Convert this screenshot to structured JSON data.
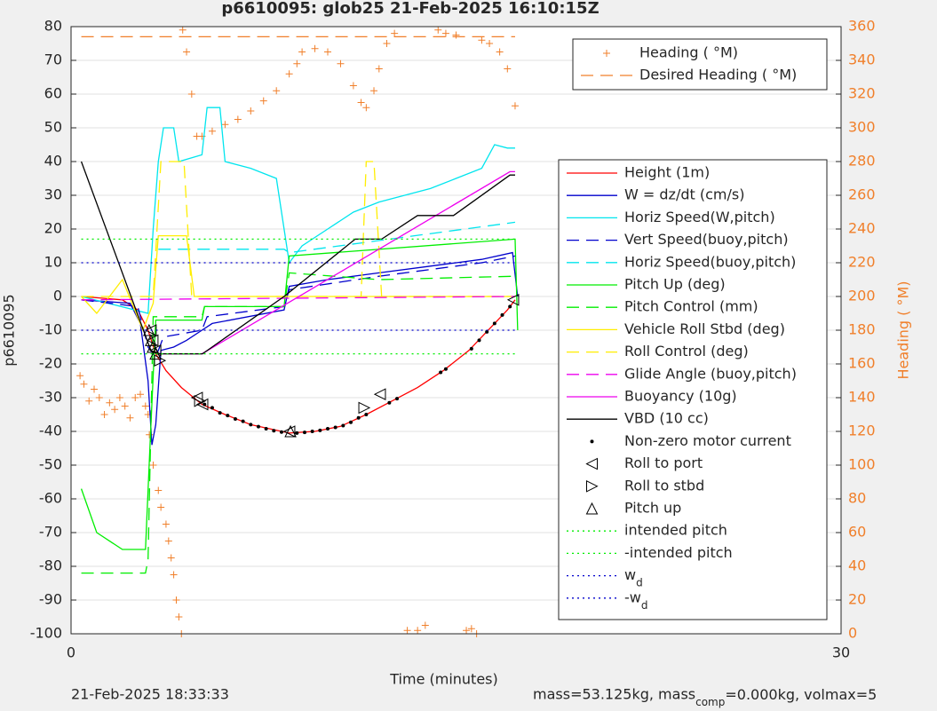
{
  "chart_data": {
    "type": "line",
    "title": "p6610095: glob25 21-Feb-2025 16:10:15Z",
    "x_label": "Time (minutes)",
    "y_label": "p6610095",
    "y2_label": "Heading (  °M)",
    "footer_left": "21-Feb-2025 18:33:33",
    "footer_right": "mass=53.125kg, mass_comp=0.000kg, volmax=5",
    "xlim": [
      0,
      30
    ],
    "xticks": [
      0,
      30
    ],
    "ylim": [
      -100,
      80
    ],
    "yticks": [
      -100,
      -90,
      -80,
      -70,
      -60,
      -50,
      -40,
      -30,
      -20,
      -10,
      0,
      10,
      20,
      30,
      40,
      50,
      60,
      70,
      80
    ],
    "y2lim": [
      0,
      360
    ],
    "y2ticks": [
      0,
      20,
      40,
      60,
      80,
      100,
      120,
      140,
      160,
      180,
      200,
      220,
      240,
      260,
      280,
      300,
      320,
      340,
      360
    ],
    "grid": true,
    "series": [
      {
        "name": "Heading (  °M)",
        "axis": "y2",
        "color": "#f07f2a",
        "line_style": "none",
        "marker": "+",
        "x": [
          0.35,
          0.5,
          0.7,
          0.9,
          1.1,
          1.3,
          1.5,
          1.7,
          1.9,
          2.1,
          2.3,
          2.5,
          2.7,
          2.9,
          3.0,
          3.05,
          3.2,
          3.4,
          3.5,
          3.7,
          3.8,
          3.9,
          4.0,
          4.1,
          4.2,
          4.3,
          4.35,
          4.5,
          4.7,
          4.9,
          5.1,
          5.5,
          6,
          6.5,
          7,
          7.5,
          8,
          8.5,
          8.8,
          9,
          9.5,
          10,
          10.5,
          11,
          11.3,
          11.5,
          11.8,
          12,
          12.3,
          12.6,
          13.1,
          13.5,
          13.8,
          14.3,
          14.6,
          15,
          15.4,
          15.6,
          15.8,
          16,
          16.3,
          16.7,
          17,
          17.3
        ],
        "values": [
          153,
          148,
          138,
          145,
          140,
          130,
          137,
          133,
          140,
          135,
          128,
          140,
          142,
          135,
          130,
          118,
          100,
          85,
          75,
          65,
          55,
          45,
          35,
          20,
          10,
          0,
          358,
          345,
          320,
          295,
          295,
          298,
          302,
          305,
          310,
          316,
          322,
          332,
          338,
          345,
          347,
          345,
          338,
          325,
          315,
          312,
          322,
          335,
          350,
          356,
          2,
          2,
          5,
          358,
          356,
          355,
          2,
          3,
          0,
          352,
          350,
          345,
          335,
          313
        ]
      },
      {
        "name": "Desired Heading (  °M)",
        "axis": "y2",
        "color": "#f07f2a",
        "line_style": "--",
        "marker": "none",
        "x": [
          0.4,
          17.3
        ],
        "values": [
          354,
          354
        ]
      },
      {
        "name": "Height (1m)",
        "color": "#ff0000",
        "line_style": "-",
        "marker": "none",
        "x": [
          0.4,
          2.0,
          2.6,
          3.0,
          3.3,
          3.7,
          4.3,
          5.1,
          6,
          7,
          8.5,
          9.5,
          10.5,
          11.5,
          12.5,
          13.5,
          14.5,
          15.5,
          16.5,
          17.0,
          17.3
        ],
        "values": [
          0,
          -1,
          -4,
          -10,
          -17,
          -22,
          -27,
          -32,
          -35,
          -38,
          -40.5,
          -40,
          -38.5,
          -35,
          -31,
          -27,
          -22,
          -16,
          -8,
          -4,
          -1
        ]
      },
      {
        "name": "W = dz/dt (cm/s)",
        "color": "#0000cc",
        "line_style": "-",
        "marker": "none",
        "x": [
          0.4,
          2.3,
          2.7,
          3.0,
          3.15,
          3.3,
          3.5,
          4,
          4.5,
          5.1,
          5.5,
          8.3,
          8.5,
          10,
          12,
          14,
          16,
          17.2,
          17.4
        ],
        "values": [
          -1,
          -2,
          -8,
          -25,
          -44,
          -38,
          -16,
          -15,
          -13,
          -10,
          -8,
          -4,
          3,
          5,
          7,
          9,
          11,
          13,
          0
        ]
      },
      {
        "name": "Horiz Speed(W,pitch)",
        "color": "#00e5ee",
        "line_style": "-",
        "marker": "none",
        "x": [
          0.4,
          3.0,
          3.2,
          3.4,
          3.6,
          4,
          4.2,
          5.1,
          5.3,
          5.8,
          6,
          7,
          8,
          8.3,
          8.5,
          9,
          10,
          11,
          12,
          13,
          14,
          15,
          16,
          16.5,
          17,
          17.3
        ],
        "values": [
          0,
          -5,
          20,
          40,
          50,
          50,
          40,
          42,
          56,
          56,
          40,
          38,
          35,
          20,
          10,
          15,
          20,
          25,
          28,
          30,
          32,
          35,
          38,
          45,
          44,
          44
        ]
      },
      {
        "name": "Vert Speed(buoy,pitch)",
        "color": "#0000cc",
        "line_style": "--",
        "marker": "none",
        "x": [
          0.4,
          2.6,
          3.0,
          3.3,
          3.6,
          5.1,
          5.3,
          8.3,
          8.5,
          12,
          16,
          17.3
        ],
        "values": [
          -1,
          -3,
          -15,
          -18,
          -12,
          -10,
          -6,
          -3,
          2,
          6,
          10,
          12
        ]
      },
      {
        "name": "Horiz Speed(buoy,pitch)",
        "color": "#00e5ee",
        "line_style": "--",
        "marker": "none",
        "x": [
          3.4,
          8.3,
          8.5,
          17.3
        ],
        "values": [
          14,
          14,
          13,
          22
        ]
      },
      {
        "name": "Pitch Up (deg)",
        "color": "#00ee00",
        "line_style": "-",
        "marker": "none",
        "x": [
          0.4,
          1,
          2,
          2.9,
          3.1,
          3.3,
          5.1,
          5.2,
          8.3,
          8.5,
          17.3,
          17.4
        ],
        "values": [
          -57,
          -70,
          -75,
          -75,
          -40,
          -7,
          -7,
          -3,
          -3,
          12,
          17,
          -10
        ]
      },
      {
        "name": "Pitch Control (mm)",
        "color": "#00ee00",
        "line_style": "--",
        "marker": "none",
        "x": [
          0.4,
          2.9,
          3.0,
          3.2,
          5.1,
          5.2,
          8.3,
          8.5,
          12,
          17.3
        ],
        "values": [
          -82,
          -82,
          -78,
          -6,
          -6,
          -3,
          -3,
          7,
          5,
          6
        ]
      },
      {
        "name": "Vehicle Roll Stbd (deg)",
        "color": "#ffee00",
        "line_style": "-",
        "marker": "none",
        "x": [
          0.4,
          1,
          1.5,
          2,
          2.8,
          3.2,
          3.4,
          4.5,
          4.8,
          12,
          17.3
        ],
        "values": [
          0,
          -5,
          0,
          5,
          -10,
          -2,
          18,
          18,
          0,
          0,
          0
        ]
      },
      {
        "name": "Roll Control (deg)",
        "color": "#ffee00",
        "line_style": "--",
        "marker": "none",
        "x": [
          0.4,
          3.2,
          3.5,
          4.4,
          4.7,
          11.3,
          11.5,
          11.8,
          12.1,
          17.3
        ],
        "values": [
          0,
          0,
          40,
          40,
          0,
          0,
          40,
          40,
          0,
          0
        ]
      },
      {
        "name": "Glide Angle (buoy,pitch)",
        "color": "#ee00ee",
        "line_style": "--",
        "marker": "none",
        "x": [
          0.4,
          17.3
        ],
        "values": [
          -1,
          0
        ]
      },
      {
        "name": "Buoyancy (10g)",
        "color": "#ee00ee",
        "line_style": "-",
        "marker": "none",
        "x": [
          3.46,
          5.1,
          17.1,
          17.3
        ],
        "values": [
          -17,
          -17,
          37,
          37
        ]
      },
      {
        "name": "VBD (10 cc)",
        "color": "#000000",
        "line_style": "-",
        "marker": "none",
        "x": [
          0.4,
          3.11,
          3.46,
          5.12,
          8.3,
          11.07,
          12.1,
          13.5,
          14.9,
          17.1,
          17.3
        ],
        "values": [
          40,
          -16,
          -17,
          -17,
          0,
          17,
          17,
          24,
          24,
          36,
          36
        ]
      },
      {
        "name": "Non-zero motor current",
        "color": "#000000",
        "line_style": "none",
        "marker": ".",
        "x": [
          5.2,
          5.5,
          5.8,
          6.1,
          6.4,
          6.7,
          7.0,
          7.3,
          7.6,
          7.9,
          8.2,
          8.8,
          9.1,
          9.4,
          9.7,
          10.0,
          10.3,
          10.6,
          10.9,
          11.2,
          11.5,
          12.4,
          12.7,
          14.4,
          14.6,
          15.6,
          15.9,
          16.2,
          16.5,
          16.8,
          17.1
        ],
        "values": [
          -32,
          -33,
          -34.5,
          -35.3,
          -36.3,
          -37,
          -38,
          -38.6,
          -39.2,
          -39.8,
          -40.2,
          -40.5,
          -40.3,
          -40,
          -39.7,
          -39.2,
          -38.8,
          -38.3,
          -37.3,
          -36,
          -35,
          -31.5,
          -30.3,
          -22.5,
          -21.5,
          -15.5,
          -13,
          -10.5,
          -8,
          -5.5,
          -3
        ]
      },
      {
        "name": "Roll to port",
        "color": "#000000",
        "line_style": "none",
        "marker": "<",
        "x": [
          3.11,
          3.18,
          3.29,
          4.91,
          5.12,
          8.51,
          12.04,
          17.23
        ],
        "values": [
          -10,
          -13,
          -16,
          -30,
          -32,
          -40,
          -29,
          -1
        ]
      },
      {
        "name": "Roll to stbd",
        "color": "#000000",
        "line_style": "none",
        "marker": ">",
        "x": [
          3.46,
          5.02,
          11.42
        ],
        "values": [
          -19,
          -31,
          -33
        ]
      },
      {
        "name": "Pitch up",
        "color": "#000000",
        "line_style": "none",
        "marker": "^",
        "x": [
          3.04,
          3.11,
          3.18,
          3.29,
          8.55
        ],
        "values": [
          -10,
          -13,
          -15,
          -17,
          -40
        ]
      },
      {
        "name": "intended pitch",
        "color": "#00ee00",
        "line_style": ":",
        "marker": "none",
        "x": [
          0.4,
          17.3
        ],
        "values": [
          17,
          17
        ]
      },
      {
        "name": "-intended pitch",
        "color": "#00ee00",
        "line_style": ":",
        "marker": "none",
        "x": [
          0.4,
          17.3
        ],
        "values": [
          -17,
          -17
        ]
      },
      {
        "name": "w_d",
        "color": "#0000cc",
        "line_style": ":",
        "marker": "none",
        "x": [
          0.4,
          17.3
        ],
        "values": [
          10,
          10
        ]
      },
      {
        "name": "-w_d",
        "color": "#0000cc",
        "line_style": ":",
        "marker": "none",
        "x": [
          0.4,
          17.3
        ],
        "values": [
          -10,
          -10
        ]
      }
    ]
  }
}
